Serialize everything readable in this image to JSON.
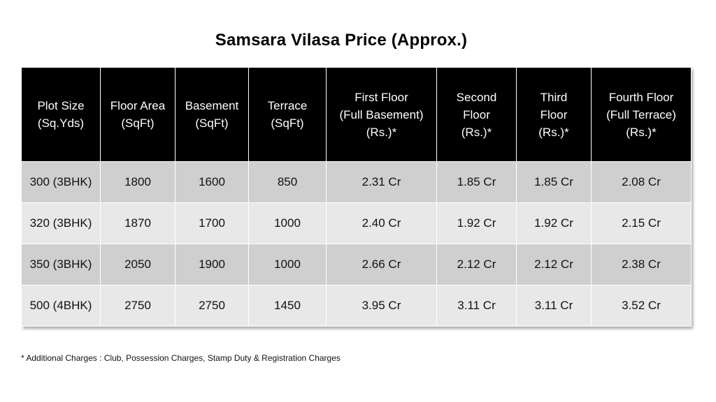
{
  "title": "Samsara Vilasa Price (Approx.)",
  "table": {
    "headers": [
      [
        "Plot Size",
        "(Sq.Yds)"
      ],
      [
        "Floor Area",
        "(SqFt)"
      ],
      [
        "Basement",
        "(SqFt)"
      ],
      [
        "Terrace",
        "(SqFt)"
      ],
      [
        "First Floor",
        "(Full Basement)",
        "(Rs.)*"
      ],
      [
        "Second",
        "Floor",
        "(Rs.)*"
      ],
      [
        "Third",
        "Floor",
        "(Rs.)*"
      ],
      [
        "Fourth Floor",
        "(Full Terrace)",
        "(Rs.)*"
      ]
    ],
    "rows": [
      [
        "300 (3BHK)",
        "1800",
        "1600",
        "850",
        "2.31 Cr",
        "1.85 Cr",
        "1.85 Cr",
        "2.08 Cr"
      ],
      [
        "320 (3BHK)",
        "1870",
        "1700",
        "1000",
        "2.40 Cr",
        "1.92 Cr",
        "1.92 Cr",
        "2.15 Cr"
      ],
      [
        "350 (3BHK)",
        "2050",
        "1900",
        "1000",
        "2.66 Cr",
        "2.12 Cr",
        "2.12 Cr",
        "2.38 Cr"
      ],
      [
        "500 (4BHK)",
        "2750",
        "2750",
        "1450",
        "3.95 Cr",
        "3.11 Cr",
        "3.11 Cr",
        "3.52 Cr"
      ]
    ]
  },
  "footnote": "* Additional Charges : Club, Possession Charges, Stamp Duty & Registration Charges",
  "colors": {
    "header_bg": "#000000",
    "header_text": "#ffffff",
    "row_dark": "#cfcfcf",
    "row_light": "#e8e8e8"
  }
}
